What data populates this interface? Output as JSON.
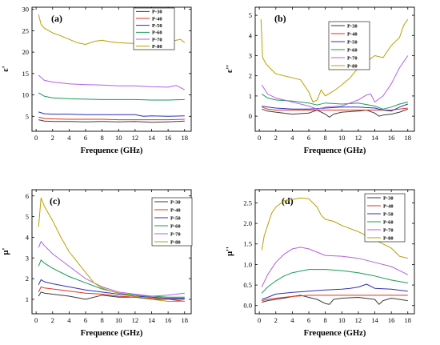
{
  "colors": {
    "P-30": "#3b3b3b",
    "P-40": "#e0321e",
    "P-50": "#2f2fb8",
    "P-60": "#189a55",
    "P-70": "#b060e6",
    "P-80": "#b8a000"
  },
  "chart_data": [
    {
      "type": "line",
      "panel": "(a)",
      "xlabel": "Frequence (GHz)",
      "ylabel": "ε'",
      "xlim": [
        -0.5,
        18.8
      ],
      "ylim": [
        1.5,
        30.5
      ],
      "xticks": [
        0,
        2,
        4,
        6,
        8,
        10,
        12,
        14,
        16,
        18
      ],
      "yticks": [
        5,
        10,
        15,
        20,
        25,
        30
      ],
      "legend_position": "top-right",
      "series": [
        {
          "name": "P-30",
          "x": [
            0.3,
            1,
            2,
            4,
            6,
            8,
            10,
            12,
            14,
            16,
            18
          ],
          "y": [
            4.2,
            3.9,
            3.8,
            3.8,
            3.7,
            3.8,
            3.7,
            3.8,
            3.6,
            3.7,
            3.9
          ]
        },
        {
          "name": "P-40",
          "x": [
            0.3,
            1,
            2,
            4,
            6,
            8,
            10,
            12,
            14,
            16,
            18
          ],
          "y": [
            4.8,
            4.5,
            4.4,
            4.3,
            4.3,
            4.3,
            4.2,
            4.2,
            4.2,
            4.2,
            4.3
          ]
        },
        {
          "name": "P-50",
          "x": [
            0.3,
            1,
            2,
            4,
            6,
            8,
            10,
            12,
            13,
            14,
            16,
            18
          ],
          "y": [
            6.0,
            5.6,
            5.5,
            5.5,
            5.4,
            5.4,
            5.4,
            5.4,
            5.0,
            5.1,
            5.0,
            5.1
          ]
        },
        {
          "name": "P-60",
          "x": [
            0.3,
            1,
            2,
            4,
            6,
            8,
            10,
            12,
            14,
            16,
            18
          ],
          "y": [
            10.5,
            9.7,
            9.3,
            9.1,
            9.0,
            8.9,
            8.9,
            8.9,
            8.8,
            8.8,
            8.9
          ]
        },
        {
          "name": "P-70",
          "x": [
            0.3,
            1,
            2,
            4,
            6,
            8,
            10,
            12,
            14,
            16,
            17,
            18
          ],
          "y": [
            14.6,
            13.4,
            13.0,
            12.6,
            12.4,
            12.3,
            12.1,
            12.1,
            11.9,
            11.8,
            12.2,
            11.2
          ]
        },
        {
          "name": "P-80",
          "x": [
            0.3,
            0.6,
            1,
            2,
            3,
            4,
            5,
            6,
            7,
            8,
            9,
            10,
            12,
            14,
            15,
            16,
            17,
            17.5,
            18
          ],
          "y": [
            28.8,
            26.5,
            25.6,
            24.5,
            23.8,
            23.0,
            22.2,
            21.8,
            22.5,
            22.8,
            22.4,
            22.2,
            22.0,
            21.9,
            22.0,
            22.2,
            22.8,
            23.0,
            22.2
          ]
        }
      ]
    },
    {
      "type": "line",
      "panel": "(b)",
      "xlabel": "Frequence (GHz)",
      "ylabel": "ε''",
      "xlim": [
        -0.5,
        18.8
      ],
      "ylim": [
        -0.75,
        5.4
      ],
      "xticks": [
        0,
        2,
        4,
        6,
        8,
        10,
        12,
        14,
        16,
        18
      ],
      "yticks": [
        0,
        1,
        2,
        3,
        4,
        5
      ],
      "legend_position": "top-left",
      "series": [
        {
          "name": "P-30",
          "x": [
            0.3,
            1,
            2,
            4,
            6,
            7,
            8,
            8.5,
            9,
            10,
            12,
            13,
            14,
            14.5,
            15,
            16,
            17,
            18
          ],
          "y": [
            0.35,
            0.25,
            0.2,
            0.1,
            0.15,
            0.3,
            0.1,
            -0.05,
            0.1,
            0.2,
            0.25,
            0.3,
            0.15,
            0.0,
            0.05,
            0.1,
            0.2,
            0.35
          ]
        },
        {
          "name": "P-40",
          "x": [
            0.3,
            1,
            2,
            4,
            6,
            8,
            10,
            12,
            14,
            16,
            18
          ],
          "y": [
            0.45,
            0.35,
            0.3,
            0.3,
            0.3,
            0.3,
            0.3,
            0.3,
            0.3,
            0.3,
            0.4
          ]
        },
        {
          "name": "P-50",
          "x": [
            0.3,
            1,
            2,
            4,
            6,
            8,
            10,
            12,
            14,
            15,
            16,
            17,
            18
          ],
          "y": [
            0.5,
            0.45,
            0.4,
            0.35,
            0.35,
            0.4,
            0.45,
            0.45,
            0.4,
            0.3,
            0.25,
            0.45,
            0.6
          ]
        },
        {
          "name": "P-60",
          "x": [
            0.3,
            1,
            2,
            4,
            6,
            7,
            8,
            10,
            12,
            14,
            15,
            16,
            17,
            18
          ],
          "y": [
            1.1,
            0.9,
            0.8,
            0.75,
            0.65,
            0.55,
            0.65,
            0.6,
            0.65,
            0.5,
            0.35,
            0.45,
            0.6,
            0.7
          ]
        },
        {
          "name": "P-70",
          "x": [
            0.3,
            1,
            2,
            4,
            6,
            7,
            8,
            10,
            12,
            13,
            13.5,
            14,
            15,
            16,
            17,
            18
          ],
          "y": [
            1.55,
            1.1,
            0.9,
            0.7,
            0.5,
            0.35,
            0.45,
            0.5,
            0.8,
            1.05,
            1.1,
            0.7,
            1.0,
            1.6,
            2.4,
            3.0
          ]
        },
        {
          "name": "P-80",
          "x": [
            0.2,
            0.4,
            0.8,
            1.5,
            2,
            4,
            5,
            6,
            6.5,
            7,
            7.5,
            8,
            9,
            10,
            11,
            12,
            13,
            14,
            15,
            16,
            17,
            17.5,
            18
          ],
          "y": [
            4.8,
            2.9,
            2.6,
            2.3,
            2.1,
            1.9,
            1.8,
            1.2,
            0.7,
            0.8,
            1.3,
            1.0,
            1.25,
            1.55,
            1.9,
            2.4,
            2.7,
            3.0,
            2.9,
            3.5,
            3.9,
            4.5,
            4.8
          ]
        }
      ]
    },
    {
      "type": "line",
      "panel": "(c)",
      "xlabel": "Frequence (GHz)",
      "ylabel": "μ'",
      "xlim": [
        -0.5,
        18.8
      ],
      "ylim": [
        0.3,
        6.3
      ],
      "xticks": [
        0,
        2,
        4,
        6,
        8,
        10,
        12,
        14,
        16,
        18
      ],
      "yticks": [
        1,
        2,
        3,
        4,
        5,
        6
      ],
      "legend_position": "top-right",
      "series": [
        {
          "name": "P-30",
          "x": [
            0.3,
            0.6,
            1,
            2,
            4,
            6,
            8,
            10,
            12,
            14,
            16,
            18
          ],
          "y": [
            1.15,
            1.35,
            1.3,
            1.25,
            1.15,
            1.0,
            1.2,
            1.1,
            1.1,
            1.0,
            1.0,
            1.0
          ]
        },
        {
          "name": "P-40",
          "x": [
            0.3,
            0.6,
            1,
            2,
            4,
            6,
            8,
            10,
            12,
            14,
            16,
            18
          ],
          "y": [
            1.35,
            1.6,
            1.55,
            1.5,
            1.4,
            1.3,
            1.25,
            1.15,
            1.1,
            1.05,
            1.0,
            0.9
          ]
        },
        {
          "name": "P-50",
          "x": [
            0.3,
            0.6,
            1,
            2,
            4,
            6,
            8,
            10,
            12,
            14,
            16,
            18
          ],
          "y": [
            1.7,
            1.95,
            1.85,
            1.75,
            1.6,
            1.45,
            1.35,
            1.25,
            1.15,
            1.1,
            1.05,
            1.05
          ]
        },
        {
          "name": "P-60",
          "x": [
            0.3,
            0.6,
            1,
            2,
            4,
            6,
            8,
            10,
            12,
            14,
            16,
            18
          ],
          "y": [
            2.6,
            2.9,
            2.75,
            2.5,
            2.1,
            1.8,
            1.5,
            1.3,
            1.2,
            1.15,
            1.1,
            1.1
          ]
        },
        {
          "name": "P-70",
          "x": [
            0.3,
            0.6,
            1,
            2,
            4,
            6,
            8,
            10,
            12,
            14,
            16,
            18
          ],
          "y": [
            3.5,
            3.8,
            3.6,
            3.2,
            2.6,
            2.0,
            1.6,
            1.35,
            1.25,
            1.15,
            1.2,
            1.3
          ]
        },
        {
          "name": "P-80",
          "x": [
            0.3,
            0.6,
            1,
            2,
            3,
            4,
            5,
            6,
            7,
            8,
            9,
            10,
            12,
            14,
            16,
            18
          ],
          "y": [
            4.5,
            5.9,
            5.5,
            4.8,
            4.0,
            3.3,
            2.8,
            2.3,
            1.8,
            1.55,
            1.4,
            1.3,
            1.15,
            1.0,
            0.9,
            0.9
          ]
        }
      ]
    },
    {
      "type": "line",
      "panel": "(d)",
      "xlabel": "Frequence (GHz)",
      "ylabel": "μ''",
      "xlim": [
        -0.5,
        18.8
      ],
      "ylim": [
        -0.2,
        2.82
      ],
      "xticks": [
        0,
        2,
        4,
        6,
        8,
        10,
        12,
        14,
        16,
        18
      ],
      "yticks": [
        0.0,
        0.5,
        1.0,
        1.5,
        2.0,
        2.5
      ],
      "legend_position": "top-right",
      "series": [
        {
          "name": "P-30",
          "x": [
            0.3,
            1,
            2,
            3,
            4,
            5,
            6,
            7,
            8,
            8.5,
            9,
            10,
            12,
            14,
            14.5,
            15,
            16,
            17,
            18
          ],
          "y": [
            0.08,
            0.12,
            0.15,
            0.18,
            0.22,
            0.25,
            0.2,
            0.15,
            0.05,
            0.03,
            0.15,
            0.18,
            0.2,
            0.15,
            0.03,
            0.12,
            0.18,
            0.15,
            0.12
          ]
        },
        {
          "name": "P-40",
          "x": [
            0.3,
            1,
            2,
            4,
            6,
            8,
            10,
            12,
            14,
            16,
            18
          ],
          "y": [
            0.12,
            0.15,
            0.18,
            0.22,
            0.25,
            0.25,
            0.25,
            0.25,
            0.25,
            0.25,
            0.25
          ]
        },
        {
          "name": "P-50",
          "x": [
            0.3,
            1,
            2,
            4,
            6,
            8,
            10,
            11,
            12,
            13,
            14,
            16,
            18
          ],
          "y": [
            0.15,
            0.2,
            0.28,
            0.32,
            0.35,
            0.38,
            0.4,
            0.42,
            0.45,
            0.52,
            0.42,
            0.4,
            0.35
          ]
        },
        {
          "name": "P-60",
          "x": [
            0.3,
            1,
            2,
            3,
            4,
            6,
            8,
            10,
            12,
            14,
            16,
            18
          ],
          "y": [
            0.3,
            0.45,
            0.6,
            0.72,
            0.8,
            0.88,
            0.88,
            0.85,
            0.8,
            0.72,
            0.62,
            0.55
          ]
        },
        {
          "name": "P-70",
          "x": [
            0.3,
            1,
            2,
            3,
            4,
            5,
            6,
            7,
            8,
            10,
            12,
            14,
            16,
            17,
            18
          ],
          "y": [
            0.45,
            0.75,
            1.05,
            1.25,
            1.38,
            1.42,
            1.38,
            1.3,
            1.22,
            1.2,
            1.15,
            1.05,
            0.95,
            0.85,
            0.75
          ]
        },
        {
          "name": "P-80",
          "x": [
            0.3,
            0.6,
            1,
            1.5,
            2,
            3,
            4,
            5,
            6,
            7,
            7.5,
            8,
            9,
            10,
            12,
            14,
            16,
            17,
            18
          ],
          "y": [
            1.35,
            1.7,
            1.95,
            2.25,
            2.4,
            2.55,
            2.58,
            2.62,
            2.6,
            2.4,
            2.2,
            2.1,
            2.05,
            1.95,
            1.8,
            1.6,
            1.4,
            1.2,
            1.15
          ]
        }
      ]
    }
  ]
}
